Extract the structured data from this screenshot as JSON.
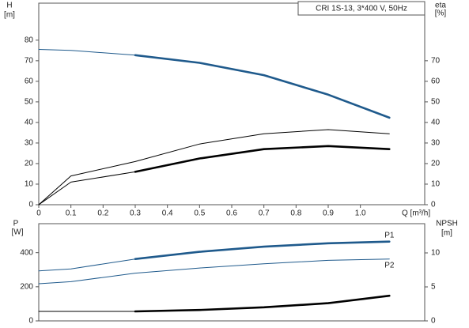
{
  "chart_data": [
    {
      "type": "line",
      "title": "CRI 1S-13, 3*400 V, 50Hz",
      "y_label": "H",
      "y_unit": "[m]",
      "y2_label": "eta",
      "y2_unit": "[%]",
      "x_label": "Q [m³/h]",
      "x": [
        0,
        0.1,
        0.3,
        0.5,
        0.7,
        0.9,
        1.09
      ],
      "xlim": [
        0,
        1.2
      ],
      "xticks": [
        0,
        0.1,
        0.2,
        0.3,
        0.4,
        0.5,
        0.6,
        0.7,
        0.8,
        0.9,
        {
          "value": 1,
          "label": "1.0"
        }
      ],
      "ylim": [
        0,
        98
      ],
      "yticks": [
        0,
        10,
        20,
        30,
        40,
        50,
        60,
        70,
        80
      ],
      "y2lim": [
        0,
        98
      ],
      "y2ticks": [
        0,
        10,
        20,
        30,
        40,
        50,
        60,
        70
      ],
      "series": [
        {
          "color": "#1f5a8c",
          "bold_from": 0.3,
          "values": [
            75.5,
            75,
            72.7,
            69,
            63,
            53.5,
            42.3
          ]
        },
        {
          "color": "#000000",
          "axis": "y2",
          "values": [
            0,
            14,
            21,
            29.5,
            34.5,
            36.5,
            34.5
          ]
        },
        {
          "color": "#000000",
          "axis": "y2",
          "bold_from": 0.3,
          "values": [
            0,
            11,
            16,
            22.5,
            27,
            28.5,
            27
          ]
        }
      ]
    },
    {
      "type": "line",
      "y_label": "P",
      "y_unit": "[W]",
      "y2_label": "NPSH",
      "y2_unit": "[m]",
      "x": [
        0,
        0.1,
        0.3,
        0.5,
        0.7,
        0.9,
        1.09
      ],
      "xlim": [
        0,
        1.2
      ],
      "ylim": [
        0,
        570
      ],
      "yticks": [
        0,
        200,
        400
      ],
      "y2lim": [
        0,
        14.3
      ],
      "y2ticks": [
        0,
        5,
        10
      ],
      "series": [
        {
          "name": "P1",
          "color": "#1f5a8c",
          "bold_from": 0.3,
          "values": [
            293,
            305,
            363,
            405,
            435,
            455,
            465
          ]
        },
        {
          "name": "P2",
          "color": "#1f5a8c",
          "values": [
            218,
            230,
            280,
            310,
            335,
            355,
            363
          ]
        },
        {
          "color": "#000000",
          "axis": "y2",
          "bold_from": 0.3,
          "values": [
            1.4,
            1.4,
            1.4,
            1.6,
            2,
            2.6,
            3.7
          ]
        }
      ]
    }
  ]
}
